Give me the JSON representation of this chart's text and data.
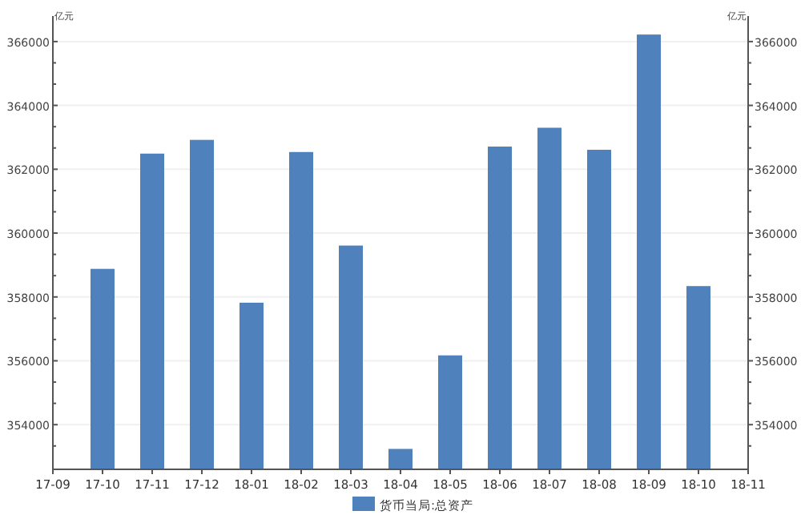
{
  "chart_data": {
    "type": "bar",
    "categories": [
      "17-09",
      "17-10",
      "17-11",
      "17-12",
      "18-01",
      "18-02",
      "18-03",
      "18-04",
      "18-05",
      "18-06",
      "18-07",
      "18-08",
      "18-09",
      "18-10",
      "18-11"
    ],
    "series": [
      {
        "name": "货币当局:总资产",
        "color": "#4f81bd",
        "values": [
          null,
          358880,
          362490,
          362920,
          357820,
          362540,
          359610,
          353240,
          356170,
          362710,
          363300,
          362610,
          366220,
          358340,
          null
        ]
      }
    ],
    "ylabel": "亿元",
    "y2label": "亿元",
    "ylim": [
      352600,
      366800
    ],
    "y2lim": [
      352600,
      366800
    ],
    "yticks": [
      {
        "value": 353333,
        "label": null
      },
      354000,
      {
        "value": 354667,
        "label": null
      },
      {
        "value": 355333,
        "label": null
      },
      356000,
      {
        "value": 356667,
        "label": null
      },
      {
        "value": 357333,
        "label": null
      },
      358000,
      {
        "value": 358667,
        "label": null
      },
      {
        "value": 359333,
        "label": null
      },
      360000,
      {
        "value": 360667,
        "label": null
      },
      {
        "value": 361333,
        "label": null
      },
      362000,
      {
        "value": 362667,
        "label": null
      },
      {
        "value": 363333,
        "label": null
      },
      364000,
      {
        "value": 364667,
        "label": null
      },
      {
        "value": 365333,
        "label": null
      },
      366000
    ],
    "y2ticks": [
      {
        "value": 353333,
        "label": null
      },
      354000,
      {
        "value": 354667,
        "label": null
      },
      {
        "value": 355333,
        "label": null
      },
      356000,
      {
        "value": 356667,
        "label": null
      },
      {
        "value": 357333,
        "label": null
      },
      358000,
      {
        "value": 358667,
        "label": null
      },
      {
        "value": 359333,
        "label": null
      },
      360000,
      {
        "value": 360667,
        "label": null
      },
      {
        "value": 361333,
        "label": null
      },
      362000,
      {
        "value": 362667,
        "label": null
      },
      {
        "value": 363333,
        "label": null
      },
      364000,
      {
        "value": 364667,
        "label": null
      },
      {
        "value": 365333,
        "label": null
      },
      366000
    ],
    "grid": "y",
    "legend": "bottom"
  }
}
